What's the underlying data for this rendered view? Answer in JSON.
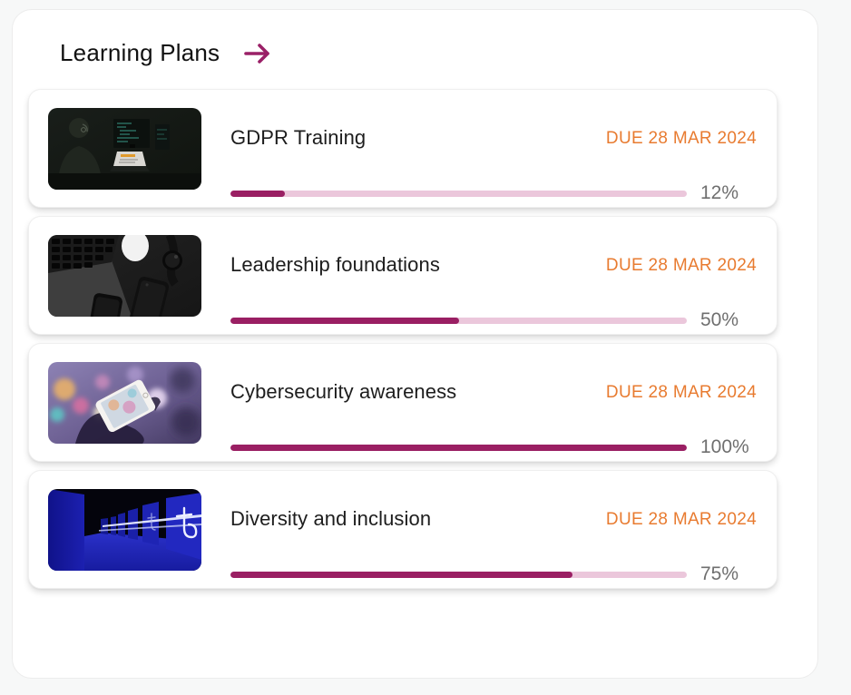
{
  "colors": {
    "accent_magenta": "#9a1f63",
    "progress_track": "#ebc7db",
    "due_orange": "#e87b30",
    "percent_gray": "#6f6f6f",
    "page_background": "#f7f8f8",
    "panel_background": "#ffffff"
  },
  "header": {
    "title": "Learning Plans",
    "arrow_icon": "arrow-right"
  },
  "plans": [
    {
      "title": "GDPR Training",
      "due": "DUE 28 MAR 2024",
      "progress": 12,
      "percent_label": "12%",
      "thumbnail": "person-coding-dark-monitors"
    },
    {
      "title": "Leadership foundations",
      "due": "DUE 28 MAR 2024",
      "progress": 50,
      "percent_label": "50%",
      "thumbnail": "dark-desk-devices-flatlay"
    },
    {
      "title": "Cybersecurity awareness",
      "due": "DUE 28 MAR 2024",
      "progress": 100,
      "percent_label": "100%",
      "thumbnail": "hand-phone-bokeh-purple"
    },
    {
      "title": "Diversity and inclusion",
      "due": "DUE 28 MAR 2024",
      "progress": 75,
      "percent_label": "75%",
      "thumbnail": "blue-corridor-tezos"
    }
  ]
}
